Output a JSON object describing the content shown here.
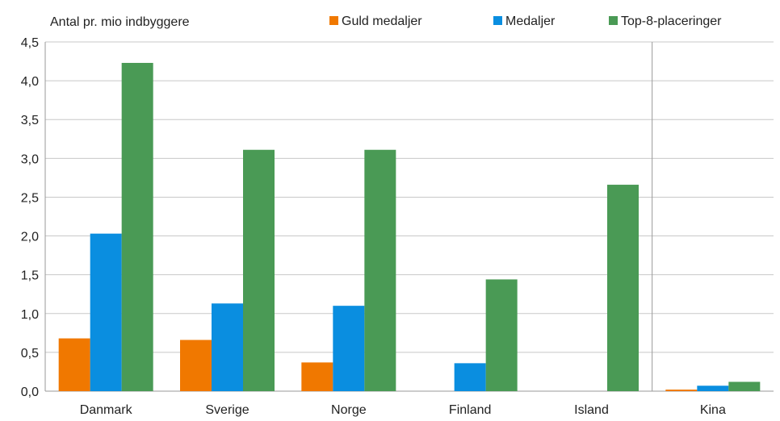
{
  "chart_data": {
    "type": "bar",
    "unit_label": "Antal  pr. mio indbyggere",
    "categories": [
      "Danmark",
      "Sverige",
      "Norge",
      "Finland",
      "Island",
      "Kina"
    ],
    "series": [
      {
        "name": "Guld medaljer",
        "color": "#f07800",
        "values": [
          0.68,
          0.66,
          0.37,
          0,
          0,
          0.02
        ]
      },
      {
        "name": "Medaljer",
        "color": "#0a8ee0",
        "values": [
          2.03,
          1.13,
          1.1,
          0.36,
          0,
          0.07
        ]
      },
      {
        "name": "Top-8-placeringer",
        "color": "#4a9a55",
        "values": [
          4.23,
          3.11,
          3.11,
          1.44,
          2.66,
          0.12
        ]
      }
    ],
    "ylim": [
      0,
      4.5
    ],
    "yticks": [
      "0,0",
      "0,5",
      "1,0",
      "1,5",
      "2,0",
      "2,5",
      "3,0",
      "3,5",
      "4,0",
      "4,5"
    ],
    "grid": true,
    "separator_before": "Kina",
    "legend_position": "top"
  }
}
